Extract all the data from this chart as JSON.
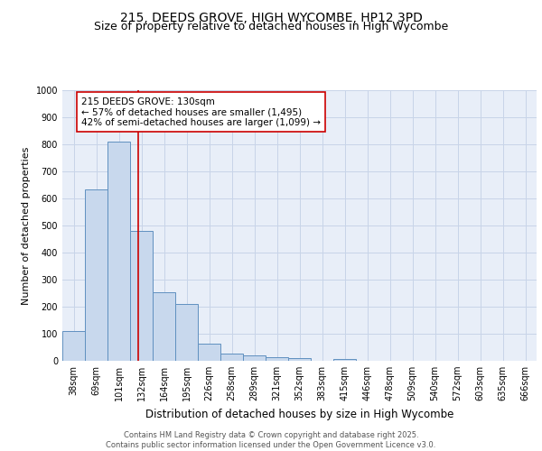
{
  "title1": "215, DEEDS GROVE, HIGH WYCOMBE, HP12 3PD",
  "title2": "Size of property relative to detached houses in High Wycombe",
  "xlabel": "Distribution of detached houses by size in High Wycombe",
  "ylabel": "Number of detached properties",
  "categories": [
    "38sqm",
    "69sqm",
    "101sqm",
    "132sqm",
    "164sqm",
    "195sqm",
    "226sqm",
    "258sqm",
    "289sqm",
    "321sqm",
    "352sqm",
    "383sqm",
    "415sqm",
    "446sqm",
    "478sqm",
    "509sqm",
    "540sqm",
    "572sqm",
    "603sqm",
    "635sqm",
    "666sqm"
  ],
  "values": [
    110,
    635,
    810,
    480,
    255,
    210,
    62,
    27,
    20,
    14,
    10,
    0,
    8,
    0,
    0,
    0,
    0,
    0,
    0,
    0,
    0
  ],
  "bar_color": "#c8d8ed",
  "bar_edge_color": "#6090c0",
  "vline_x": 2.85,
  "vline_color": "#cc0000",
  "annotation_text": "215 DEEDS GROVE: 130sqm\n← 57% of detached houses are smaller (1,495)\n42% of semi-detached houses are larger (1,099) →",
  "annotation_box_facecolor": "#ffffff",
  "annotation_box_edgecolor": "#cc0000",
  "ylim": [
    0,
    1000
  ],
  "yticks": [
    0,
    100,
    200,
    300,
    400,
    500,
    600,
    700,
    800,
    900,
    1000
  ],
  "grid_color": "#c8d4e8",
  "plot_bg_color": "#e8eef8",
  "fig_bg_color": "#ffffff",
  "footnote": "Contains HM Land Registry data © Crown copyright and database right 2025.\nContains public sector information licensed under the Open Government Licence v3.0.",
  "title_fontsize": 10,
  "subtitle_fontsize": 9,
  "tick_fontsize": 7,
  "ylabel_fontsize": 8,
  "xlabel_fontsize": 8.5,
  "annot_fontsize": 7.5,
  "footnote_fontsize": 6
}
